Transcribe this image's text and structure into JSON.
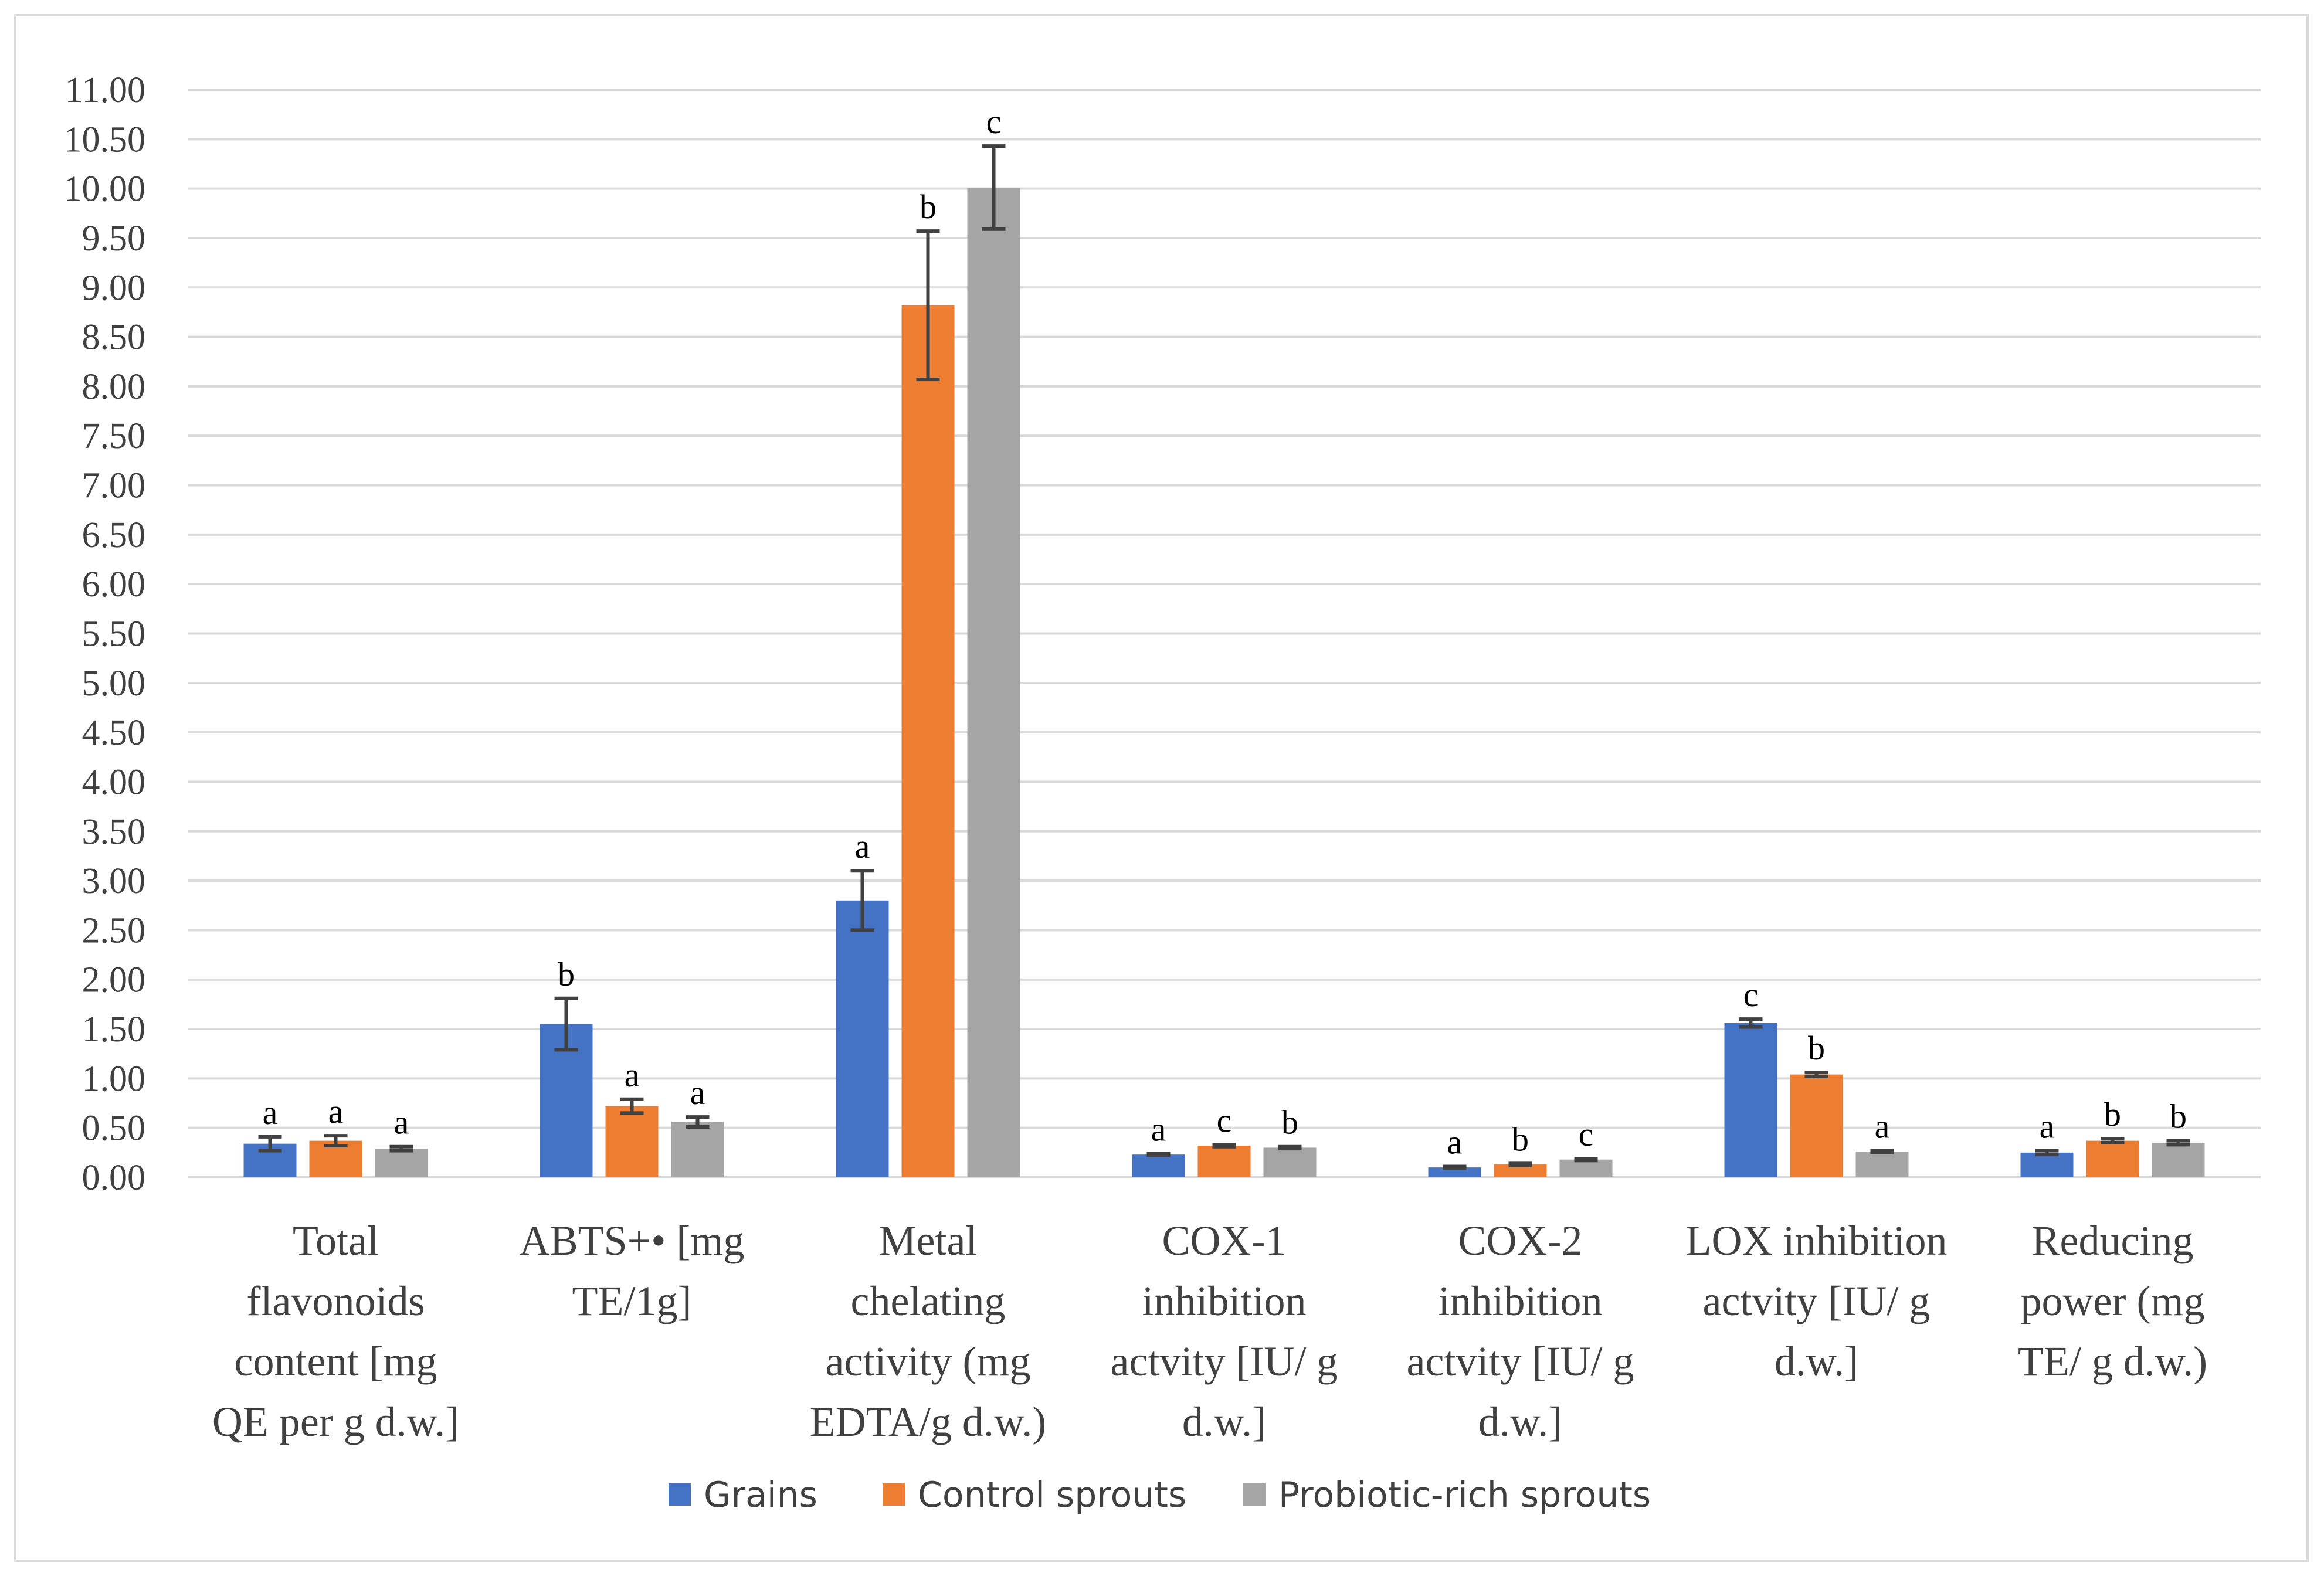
{
  "chart_data": {
    "type": "bar",
    "title": "",
    "xlabel": "",
    "ylabel": "",
    "ylim": [
      0,
      11
    ],
    "yticks": [
      "0.00",
      "0.50",
      "1.00",
      "1.50",
      "2.00",
      "2.50",
      "3.00",
      "3.50",
      "4.00",
      "4.50",
      "5.00",
      "5.50",
      "6.00",
      "6.50",
      "7.00",
      "7.50",
      "8.00",
      "8.50",
      "9.00",
      "9.50",
      "10.00",
      "10.50",
      "11.00"
    ],
    "grid": true,
    "legend_position": "bottom",
    "categories": [
      [
        "Total",
        "flavonoids",
        "content [mg",
        "QE per g d.w.]"
      ],
      [
        "ABTS+• [mg",
        "TE/1g]"
      ],
      [
        "Metal",
        "chelating",
        "activity (mg",
        "EDTA/g d.w.)"
      ],
      [
        "COX-1",
        "inhibition",
        "actvity [IU/ g",
        "d.w.]"
      ],
      [
        "COX-2",
        "inhibition",
        "actvity [IU/ g",
        "d.w.]"
      ],
      [
        "LOX inhibition",
        "actvity [IU/ g",
        "d.w.]"
      ],
      [
        "Reducing",
        "power  (mg",
        "TE/ g d.w.)"
      ]
    ],
    "series": [
      {
        "name": "Grains",
        "color": "#4472c4",
        "values": [
          0.34,
          1.55,
          2.8,
          0.23,
          0.1,
          1.56,
          0.25
        ],
        "errors": [
          0.07,
          0.26,
          0.3,
          0.01,
          0.01,
          0.04,
          0.02
        ],
        "letters": [
          "a",
          "b",
          "a",
          "a",
          "a",
          "c",
          "a"
        ]
      },
      {
        "name": "Control sprouts",
        "color": "#ed7d31",
        "values": [
          0.37,
          0.72,
          8.82,
          0.32,
          0.13,
          1.04,
          0.37
        ],
        "errors": [
          0.05,
          0.07,
          0.75,
          0.01,
          0.01,
          0.02,
          0.02
        ],
        "letters": [
          "a",
          "a",
          "b",
          "c",
          "b",
          "b",
          "b"
        ]
      },
      {
        "name": "Probiotic-rich sprouts",
        "color": "#a5a5a5",
        "values": [
          0.29,
          0.56,
          10.01,
          0.3,
          0.18,
          0.26,
          0.35
        ],
        "errors": [
          0.02,
          0.05,
          0.42,
          0.01,
          0.01,
          0.01,
          0.02
        ],
        "letters": [
          "a",
          "a",
          "c",
          "b",
          "c",
          "a",
          "b"
        ]
      }
    ]
  }
}
